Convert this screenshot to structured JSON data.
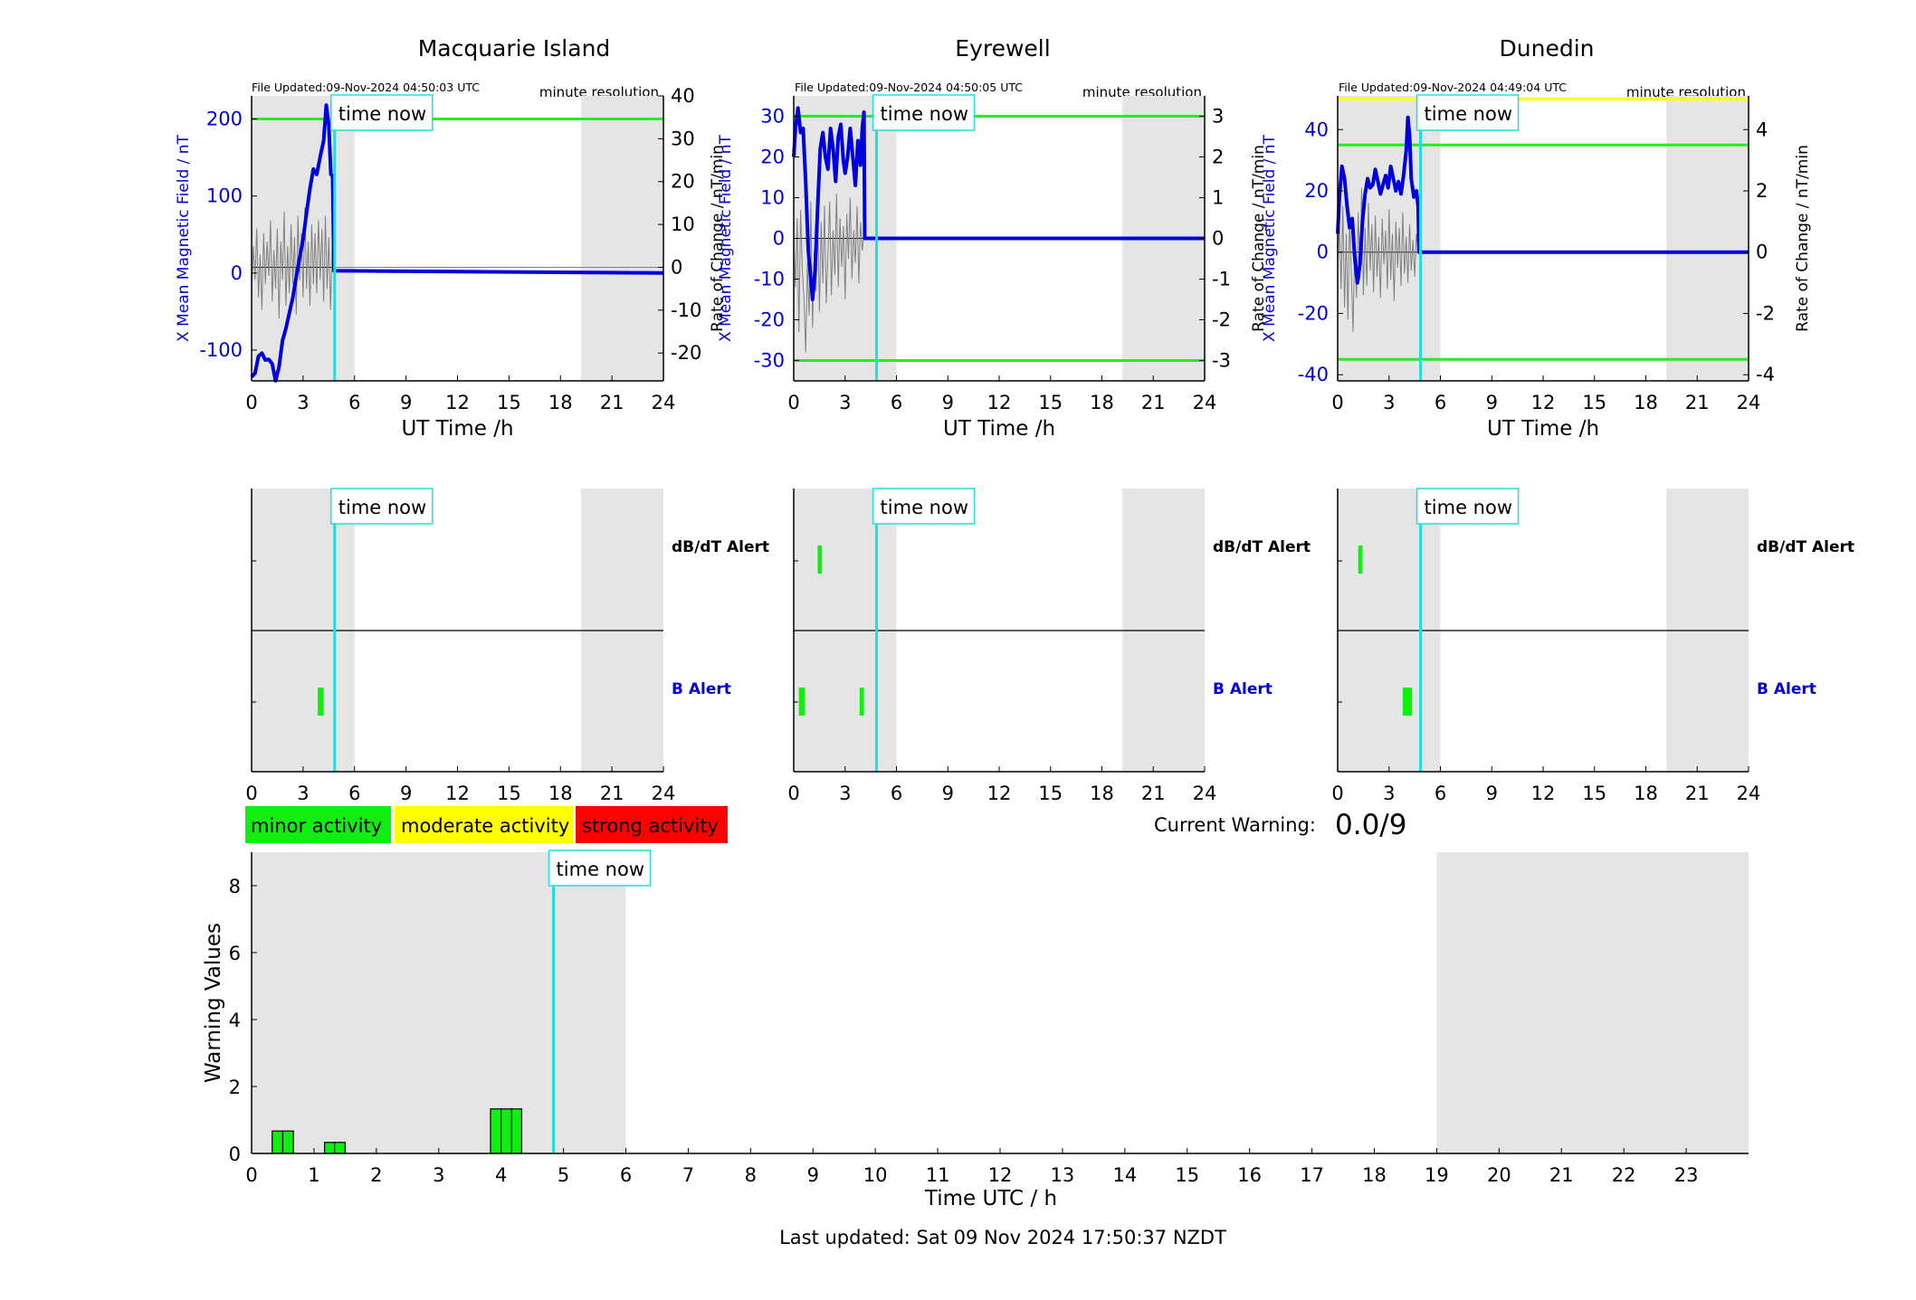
{
  "figure": {
    "common": {
      "time_now_label": "time now",
      "resolution_label": "minute resolution",
      "x_axis_label": "UT Time /h",
      "left_axis_label": "X Mean Magnetic Field / nT",
      "right_axis_label": "Rate of Change / nT/min",
      "alert_labels": {
        "dbdt": "dB/dT Alert",
        "b": "B Alert"
      },
      "time_now_hour": 4.84,
      "night_shading_hours": [
        [
          0,
          6
        ],
        [
          19.2,
          24
        ]
      ],
      "x_ticks": [
        0,
        3,
        6,
        9,
        12,
        15,
        18,
        21,
        24
      ],
      "colors": {
        "field": "#0000dd",
        "rate": "#808080",
        "threshold": "#22ee22",
        "extreme_threshold": "#ffff33",
        "time_now": "#22dddd",
        "night_shading": "#e5e5e5",
        "alert_bar": "#11ee11"
      }
    },
    "legend": {
      "minor": {
        "label": "minor activity",
        "color": "#11ee11"
      },
      "moderate": {
        "label": "moderate activity",
        "color": "#ffff00"
      },
      "strong": {
        "label": "strong activity",
        "color": "#ff0000"
      }
    },
    "current_warning": {
      "label": "Current Warning:",
      "value": "0.0/9"
    },
    "footer": "Last updated: Sat 09 Nov 2024 17:50:37 NZDT"
  },
  "chart_data": [
    {
      "type": "line",
      "station": "Macquarie Island",
      "file_updated": "File Updated:09-Nov-2024 04:50:03 UTC",
      "xlim": [
        0,
        24
      ],
      "ylim_left": [
        -140,
        230
      ],
      "ylim_right": [
        -26.5,
        40
      ],
      "yticks_left": [
        -100,
        0,
        100,
        200
      ],
      "yticks_right": [
        -20,
        -10,
        0,
        10,
        20,
        30,
        40
      ],
      "thresholds_left": [
        200
      ],
      "extreme_thresholds_left": [],
      "field_series": [
        [
          0,
          -135
        ],
        [
          0.2,
          -130
        ],
        [
          0.4,
          -108
        ],
        [
          0.6,
          -104
        ],
        [
          0.8,
          -113
        ],
        [
          1,
          -112
        ],
        [
          1.2,
          -118
        ],
        [
          1.4,
          -140
        ],
        [
          1.6,
          -122
        ],
        [
          1.8,
          -88
        ],
        [
          2,
          -72
        ],
        [
          2.2,
          -52
        ],
        [
          2.4,
          -32
        ],
        [
          2.6,
          -5
        ],
        [
          2.8,
          20
        ],
        [
          3,
          44
        ],
        [
          3.2,
          78
        ],
        [
          3.4,
          110
        ],
        [
          3.6,
          135
        ],
        [
          3.8,
          128
        ],
        [
          4,
          151
        ],
        [
          4.2,
          172
        ],
        [
          4.35,
          218
        ],
        [
          4.5,
          192
        ],
        [
          4.62,
          128
        ],
        [
          4.72,
          126
        ],
        [
          4.8,
          3
        ],
        [
          24,
          0
        ]
      ],
      "rate_series": [
        [
          0,
          -6
        ],
        [
          0.1,
          5
        ],
        [
          0.2,
          -3
        ],
        [
          0.3,
          9
        ],
        [
          0.4,
          -7
        ],
        [
          0.5,
          3
        ],
        [
          0.6,
          -10
        ],
        [
          0.7,
          8
        ],
        [
          0.8,
          -4
        ],
        [
          0.9,
          6
        ],
        [
          1,
          -2
        ],
        [
          1.1,
          11
        ],
        [
          1.2,
          -8
        ],
        [
          1.3,
          4
        ],
        [
          1.4,
          -5
        ],
        [
          1.5,
          9
        ],
        [
          1.6,
          -12
        ],
        [
          1.7,
          6
        ],
        [
          1.8,
          -3
        ],
        [
          1.9,
          13
        ],
        [
          2,
          -9
        ],
        [
          2.1,
          5
        ],
        [
          2.2,
          -6
        ],
        [
          2.3,
          10
        ],
        [
          2.4,
          -4
        ],
        [
          2.5,
          7
        ],
        [
          2.6,
          -11
        ],
        [
          2.7,
          12
        ],
        [
          2.8,
          -3
        ],
        [
          2.9,
          8
        ],
        [
          3,
          -7
        ],
        [
          3.1,
          14
        ],
        [
          3.2,
          -5
        ],
        [
          3.3,
          6
        ],
        [
          3.4,
          -9
        ],
        [
          3.5,
          10
        ],
        [
          3.6,
          -4
        ],
        [
          3.7,
          8
        ],
        [
          3.8,
          -6
        ],
        [
          3.9,
          11
        ],
        [
          4,
          -3
        ],
        [
          4.1,
          9
        ],
        [
          4.2,
          -8
        ],
        [
          4.3,
          12
        ],
        [
          4.4,
          -5
        ],
        [
          4.5,
          7
        ],
        [
          4.6,
          -10
        ],
        [
          4.7,
          5
        ],
        [
          4.8,
          0
        ],
        [
          24,
          0
        ]
      ]
    },
    {
      "type": "line",
      "station": "Eyrewell",
      "file_updated": "File Updated:09-Nov-2024 04:50:05 UTC",
      "xlim": [
        0,
        24
      ],
      "ylim_left": [
        -35,
        35
      ],
      "ylim_right": [
        -3.5,
        3.5
      ],
      "yticks_left": [
        -30,
        -20,
        -10,
        0,
        10,
        20,
        30
      ],
      "yticks_right": [
        -3,
        -2,
        -1,
        0,
        1,
        2,
        3
      ],
      "thresholds_left": [
        30,
        -30
      ],
      "extreme_thresholds_left": [],
      "field_series": [
        [
          0,
          20
        ],
        [
          0.1,
          27
        ],
        [
          0.25,
          32
        ],
        [
          0.4,
          26
        ],
        [
          0.55,
          27
        ],
        [
          0.7,
          14
        ],
        [
          0.85,
          -3
        ],
        [
          1,
          -10
        ],
        [
          1.1,
          -15
        ],
        [
          1.25,
          -8
        ],
        [
          1.4,
          8
        ],
        [
          1.55,
          22
        ],
        [
          1.7,
          26
        ],
        [
          1.85,
          20
        ],
        [
          2,
          17
        ],
        [
          2.15,
          27
        ],
        [
          2.3,
          22
        ],
        [
          2.45,
          14
        ],
        [
          2.6,
          25
        ],
        [
          2.75,
          28
        ],
        [
          2.9,
          19
        ],
        [
          3,
          16
        ],
        [
          3.15,
          20
        ],
        [
          3.3,
          27
        ],
        [
          3.45,
          20
        ],
        [
          3.6,
          13
        ],
        [
          3.75,
          24
        ],
        [
          3.9,
          18
        ],
        [
          4,
          27
        ],
        [
          4.1,
          31
        ],
        [
          4.15,
          0
        ],
        [
          24,
          0
        ]
      ],
      "rate_series": [
        [
          0,
          0.1
        ],
        [
          0.1,
          -1.2
        ],
        [
          0.2,
          0.5
        ],
        [
          0.3,
          -2.3
        ],
        [
          0.4,
          0.7
        ],
        [
          0.5,
          -0.8
        ],
        [
          0.6,
          -1.5
        ],
        [
          0.7,
          -2.8
        ],
        [
          0.8,
          -0.6
        ],
        [
          0.9,
          -1.9
        ],
        [
          1,
          0.9
        ],
        [
          1.1,
          -2.2
        ],
        [
          1.2,
          -0.3
        ],
        [
          1.3,
          -1.3
        ],
        [
          1.4,
          0.6
        ],
        [
          1.5,
          -1.8
        ],
        [
          1.6,
          0.4
        ],
        [
          1.7,
          -1.1
        ],
        [
          1.8,
          0.8
        ],
        [
          1.9,
          -1.6
        ],
        [
          2,
          -0.4
        ],
        [
          2.1,
          0.9
        ],
        [
          2.2,
          -1.4
        ],
        [
          2.3,
          0.2
        ],
        [
          2.4,
          -0.9
        ],
        [
          2.5,
          1.1
        ],
        [
          2.6,
          -1.2
        ],
        [
          2.7,
          0.5
        ],
        [
          2.8,
          -0.7
        ],
        [
          2.9,
          0.3
        ],
        [
          3,
          -1.5
        ],
        [
          3.1,
          0.6
        ],
        [
          3.2,
          -0.5
        ],
        [
          3.3,
          1
        ],
        [
          3.4,
          -1
        ],
        [
          3.5,
          0.2
        ],
        [
          3.6,
          -0.6
        ],
        [
          3.7,
          0.8
        ],
        [
          3.8,
          -1.1
        ],
        [
          3.9,
          0.4
        ],
        [
          4,
          -0.3
        ],
        [
          4.1,
          0.1
        ],
        [
          4.2,
          0
        ],
        [
          24,
          0
        ]
      ]
    },
    {
      "type": "line",
      "station": "Dunedin",
      "file_updated": "File Updated:09-Nov-2024 04:49:04 UTC",
      "xlim": [
        0,
        24
      ],
      "ylim_left": [
        -42,
        51
      ],
      "ylim_right": [
        -4.2,
        5.1
      ],
      "yticks_left": [
        -40,
        -20,
        0,
        20,
        40
      ],
      "yticks_right": [
        -4,
        -2,
        0,
        2,
        4
      ],
      "thresholds_left": [
        35,
        -35
      ],
      "extreme_thresholds_left": [
        50
      ],
      "field_series": [
        [
          0,
          6
        ],
        [
          0.1,
          18
        ],
        [
          0.25,
          28
        ],
        [
          0.4,
          24
        ],
        [
          0.55,
          15
        ],
        [
          0.7,
          8
        ],
        [
          0.85,
          11
        ],
        [
          1,
          -2
        ],
        [
          1.15,
          -10
        ],
        [
          1.3,
          -4
        ],
        [
          1.45,
          10
        ],
        [
          1.6,
          19
        ],
        [
          1.75,
          24
        ],
        [
          1.9,
          21
        ],
        [
          2.05,
          22
        ],
        [
          2.2,
          27
        ],
        [
          2.35,
          23
        ],
        [
          2.5,
          19
        ],
        [
          2.65,
          22
        ],
        [
          2.8,
          25
        ],
        [
          2.95,
          21
        ],
        [
          3.1,
          28
        ],
        [
          3.25,
          24
        ],
        [
          3.4,
          20
        ],
        [
          3.55,
          23
        ],
        [
          3.7,
          19
        ],
        [
          3.85,
          25
        ],
        [
          4,
          33
        ],
        [
          4.1,
          44
        ],
        [
          4.2,
          38
        ],
        [
          4.3,
          24
        ],
        [
          4.45,
          18
        ],
        [
          4.6,
          20
        ],
        [
          4.7,
          15
        ],
        [
          4.75,
          0
        ],
        [
          24,
          0
        ]
      ],
      "rate_series": [
        [
          0,
          -0.5
        ],
        [
          0.1,
          0.9
        ],
        [
          0.2,
          -1.2
        ],
        [
          0.3,
          1.5
        ],
        [
          0.4,
          -1.8
        ],
        [
          0.5,
          0.6
        ],
        [
          0.6,
          -2.2
        ],
        [
          0.7,
          1.1
        ],
        [
          0.8,
          -0.7
        ],
        [
          0.9,
          -2.6
        ],
        [
          1,
          0.4
        ],
        [
          1.1,
          -1.5
        ],
        [
          1.2,
          1.3
        ],
        [
          1.3,
          -0.9
        ],
        [
          1.4,
          2.1
        ],
        [
          1.5,
          -1.4
        ],
        [
          1.6,
          0.8
        ],
        [
          1.7,
          -1.1
        ],
        [
          1.8,
          1.6
        ],
        [
          1.9,
          -0.6
        ],
        [
          2,
          0.9
        ],
        [
          2.1,
          -1.3
        ],
        [
          2.2,
          1.2
        ],
        [
          2.3,
          -0.8
        ],
        [
          2.4,
          0.5
        ],
        [
          2.5,
          -1.5
        ],
        [
          2.6,
          1.1
        ],
        [
          2.7,
          -0.4
        ],
        [
          2.8,
          0.7
        ],
        [
          2.9,
          -1.2
        ],
        [
          3,
          1.4
        ],
        [
          3.1,
          -0.9
        ],
        [
          3.2,
          0.6
        ],
        [
          3.3,
          -1.6
        ],
        [
          3.4,
          1
        ],
        [
          3.5,
          -0.5
        ],
        [
          3.6,
          0.8
        ],
        [
          3.7,
          -1.1
        ],
        [
          3.8,
          1.3
        ],
        [
          3.9,
          -0.7
        ],
        [
          4,
          0.5
        ],
        [
          4.1,
          -1
        ],
        [
          4.2,
          0.9
        ],
        [
          4.3,
          -0.6
        ],
        [
          4.4,
          0.4
        ],
        [
          4.5,
          -0.8
        ],
        [
          4.6,
          0.6
        ],
        [
          4.7,
          0
        ],
        [
          24,
          0
        ]
      ]
    },
    {
      "type": "bar",
      "name": "alerts-macquarie",
      "xlim": [
        0,
        24
      ],
      "dbdt_alerts": [],
      "b_alerts": [
        [
          3.85,
          4.2
        ]
      ]
    },
    {
      "type": "bar",
      "name": "alerts-eyrewell",
      "xlim": [
        0,
        24
      ],
      "dbdt_alerts": [
        [
          1.4,
          1.65
        ]
      ],
      "b_alerts": [
        [
          0.3,
          0.65
        ],
        [
          3.85,
          4.1
        ]
      ]
    },
    {
      "type": "bar",
      "name": "alerts-dunedin",
      "xlim": [
        0,
        24
      ],
      "dbdt_alerts": [
        [
          1.2,
          1.45
        ]
      ],
      "b_alerts": [
        [
          3.8,
          4.35
        ]
      ]
    },
    {
      "type": "bar",
      "name": "warning-values",
      "xlabel": "Time UTC / h",
      "ylabel": "Warning Values",
      "xlim": [
        0,
        24
      ],
      "ylim": [
        0,
        9
      ],
      "x_ticks": [
        0,
        1,
        2,
        3,
        4,
        5,
        6,
        7,
        8,
        9,
        10,
        11,
        12,
        13,
        14,
        15,
        16,
        17,
        18,
        19,
        20,
        21,
        22,
        23
      ],
      "y_ticks": [
        0,
        2,
        4,
        6,
        8
      ],
      "night_shading_hours": [
        [
          0,
          6
        ],
        [
          19,
          24
        ]
      ],
      "time_now_hour": 4.84,
      "bars": [
        {
          "start": 0.33,
          "end": 0.5,
          "value": 0.67
        },
        {
          "start": 0.5,
          "end": 0.67,
          "value": 0.67
        },
        {
          "start": 1.17,
          "end": 1.33,
          "value": 0.33
        },
        {
          "start": 1.33,
          "end": 1.5,
          "value": 0.33
        },
        {
          "start": 3.83,
          "end": 4.0,
          "value": 1.33
        },
        {
          "start": 4.0,
          "end": 4.17,
          "value": 1.33
        },
        {
          "start": 4.17,
          "end": 4.33,
          "value": 1.33
        }
      ]
    }
  ]
}
